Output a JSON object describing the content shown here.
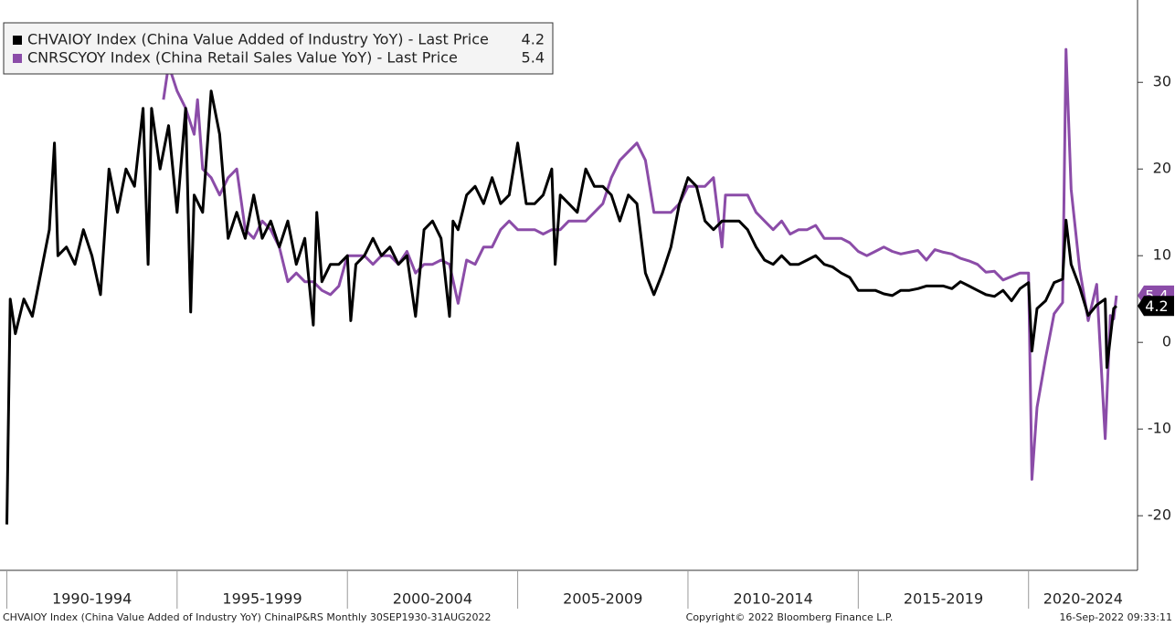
{
  "chart_data": {
    "type": "line",
    "xlim": [
      1989.8,
      2023.2
    ],
    "xticks": [
      1990,
      1995,
      2000,
      2005,
      2010,
      2015,
      2020
    ],
    "x_periods": [
      "1990-1994",
      "1995-1999",
      "2000-2004",
      "2005-2009",
      "2010-2014",
      "2015-2019",
      "2020-2024"
    ],
    "ylim": [
      -26.3,
      39.5
    ],
    "yticks": [
      -20,
      -10,
      0,
      10,
      20,
      30
    ],
    "series": [
      {
        "name": "CHVAIOY Index (China Value Added of Industry YoY) - Last Price",
        "last_price": 4.2,
        "color": "#000000",
        "x": [
          1990.0,
          1990.1,
          1990.25,
          1990.5,
          1990.75,
          1991.0,
          1991.25,
          1991.4,
          1991.5,
          1991.75,
          1992.0,
          1992.25,
          1992.5,
          1992.75,
          1993.0,
          1993.25,
          1993.5,
          1993.75,
          1994.0,
          1994.15,
          1994.25,
          1994.5,
          1994.75,
          1995.0,
          1995.25,
          1995.4,
          1995.5,
          1995.75,
          1996.0,
          1996.25,
          1996.5,
          1996.75,
          1997.0,
          1997.25,
          1997.5,
          1997.75,
          1998.0,
          1998.25,
          1998.5,
          1998.75,
          1999.0,
          1999.1,
          1999.25,
          1999.5,
          1999.75,
          2000.0,
          2000.1,
          2000.25,
          2000.5,
          2000.75,
          2001.0,
          2001.25,
          2001.5,
          2001.75,
          2002.0,
          2002.25,
          2002.5,
          2002.75,
          2003.0,
          2003.1,
          2003.25,
          2003.5,
          2003.75,
          2004.0,
          2004.25,
          2004.5,
          2004.75,
          2005.0,
          2005.25,
          2005.5,
          2005.75,
          2006.0,
          2006.1,
          2006.25,
          2006.5,
          2006.75,
          2007.0,
          2007.25,
          2007.5,
          2007.75,
          2008.0,
          2008.25,
          2008.5,
          2008.75,
          2009.0,
          2009.25,
          2009.5,
          2009.75,
          2010.0,
          2010.25,
          2010.5,
          2010.75,
          2011.0,
          2011.25,
          2011.5,
          2011.75,
          2012.0,
          2012.25,
          2012.5,
          2012.75,
          2013.0,
          2013.25,
          2013.5,
          2013.75,
          2014.0,
          2014.25,
          2014.5,
          2014.75,
          2015.0,
          2015.25,
          2015.5,
          2015.75,
          2016.0,
          2016.25,
          2016.5,
          2016.75,
          2017.0,
          2017.25,
          2017.5,
          2017.75,
          2018.0,
          2018.25,
          2018.5,
          2018.75,
          2019.0,
          2019.25,
          2019.5,
          2019.75,
          2020.0,
          2020.1,
          2020.25,
          2020.5,
          2020.75,
          2021.0,
          2021.1,
          2021.25,
          2021.5,
          2021.75,
          2022.0,
          2022.25,
          2022.3,
          2022.5,
          2022.58
        ],
        "values": [
          -21,
          5,
          1,
          5,
          3,
          8,
          13,
          23,
          10,
          11,
          9,
          13,
          10,
          5.5,
          20,
          15,
          20,
          18,
          27,
          9,
          27,
          20,
          25,
          15,
          27,
          3.5,
          17,
          15,
          29,
          24,
          12,
          15,
          12,
          17,
          12,
          14,
          11,
          14,
          9,
          12,
          2,
          15,
          7,
          9,
          9,
          10,
          2.5,
          9,
          10,
          12,
          10,
          11,
          9,
          10,
          3,
          13,
          14,
          12,
          3,
          14,
          13,
          17,
          18,
          16,
          19,
          16,
          17,
          23,
          16,
          16,
          17,
          20,
          9,
          17,
          16,
          15,
          20,
          18,
          18,
          17,
          14,
          17,
          16,
          8,
          5.5,
          8,
          11,
          16,
          19,
          18,
          14,
          13,
          14,
          14,
          14,
          13,
          11,
          9.5,
          9,
          10,
          9,
          9,
          9.5,
          10,
          9,
          8.7,
          8,
          7.5,
          6,
          6,
          6,
          5.6,
          5.4,
          6,
          6,
          6.2,
          6.5,
          6.5,
          6.5,
          6.2,
          7,
          6.5,
          6,
          5.5,
          5.3,
          6,
          4.8,
          6.2,
          6.9,
          -1,
          3.9,
          4.8,
          6.9,
          7.3,
          14.1,
          9,
          6.4,
          3.1,
          4.3,
          5,
          -2.9,
          3.9,
          4.2
        ]
      },
      {
        "name": "CNRSCYOY Index (China Retail Sales Value YoY) - Last Price",
        "last_price": 5.4,
        "color": "#8b4ca8",
        "x": [
          1994.6,
          1994.75,
          1995.0,
          1995.25,
          1995.5,
          1995.6,
          1995.75,
          1996.0,
          1996.25,
          1996.5,
          1996.75,
          1997.0,
          1997.25,
          1997.5,
          1997.75,
          1998.0,
          1998.25,
          1998.5,
          1998.75,
          1999.0,
          1999.25,
          1999.5,
          1999.75,
          2000.0,
          2000.25,
          2000.5,
          2000.75,
          2001.0,
          2001.25,
          2001.5,
          2001.75,
          2002.0,
          2002.25,
          2002.5,
          2002.75,
          2003.0,
          2003.25,
          2003.5,
          2003.75,
          2004.0,
          2004.25,
          2004.5,
          2004.75,
          2005.0,
          2005.25,
          2005.5,
          2005.75,
          2006.0,
          2006.25,
          2006.5,
          2006.75,
          2007.0,
          2007.25,
          2007.5,
          2007.75,
          2008.0,
          2008.25,
          2008.5,
          2008.75,
          2009.0,
          2009.25,
          2009.5,
          2009.75,
          2010.0,
          2010.25,
          2010.5,
          2010.75,
          2011.0,
          2011.1,
          2011.25,
          2011.5,
          2011.75,
          2012.0,
          2012.25,
          2012.5,
          2012.75,
          2013.0,
          2013.25,
          2013.5,
          2013.75,
          2014.0,
          2014.25,
          2014.5,
          2014.75,
          2015.0,
          2015.25,
          2015.5,
          2015.75,
          2016.0,
          2016.25,
          2016.5,
          2016.75,
          2017.0,
          2017.25,
          2017.5,
          2017.75,
          2018.0,
          2018.25,
          2018.5,
          2018.75,
          2019.0,
          2019.25,
          2019.5,
          2019.75,
          2020.0,
          2020.1,
          2020.25,
          2020.5,
          2020.75,
          2021.0,
          2021.1,
          2021.25,
          2021.5,
          2021.75,
          2022.0,
          2022.25,
          2022.4,
          2022.5,
          2022.58
        ],
        "values": [
          28,
          32,
          29,
          27,
          24,
          28,
          20,
          19,
          17,
          19,
          20,
          13,
          12,
          14,
          13,
          11,
          7,
          8,
          7,
          7,
          6,
          5.5,
          6.5,
          10,
          10,
          10,
          9,
          10,
          10,
          9,
          10.5,
          8,
          9,
          9,
          9.5,
          9,
          4.5,
          9.5,
          9,
          11,
          11,
          13,
          14,
          13,
          13,
          13,
          12.5,
          13,
          13,
          14,
          14,
          14,
          15,
          16,
          19,
          21,
          22,
          23,
          21,
          15,
          15,
          15,
          16,
          18,
          18,
          18,
          19,
          11,
          17,
          17,
          17,
          17,
          15,
          14,
          13,
          14,
          12.5,
          13,
          13,
          13.5,
          12,
          12,
          12,
          11.5,
          10.5,
          10,
          10.5,
          11,
          10.5,
          10.2,
          10.4,
          10.6,
          9.5,
          10.7,
          10.4,
          10.2,
          9.7,
          9.4,
          9,
          8.1,
          8.2,
          7.2,
          7.6,
          8,
          8,
          -15.8,
          -7.5,
          -1.8,
          3.3,
          4.6,
          33.8,
          17.7,
          8.5,
          2.5,
          6.7,
          -11.1,
          3.1,
          2.7,
          5.4
        ]
      }
    ],
    "footer_left": "CHVAIOY Index (China Value Added of Industry YoY) ChinaIP&RS  Monthly 30SEP1930-31AUG2022",
    "footer_center": "Copyright© 2022 Bloomberg Finance L.P.",
    "footer_right": "16-Sep-2022 09:33:11"
  }
}
